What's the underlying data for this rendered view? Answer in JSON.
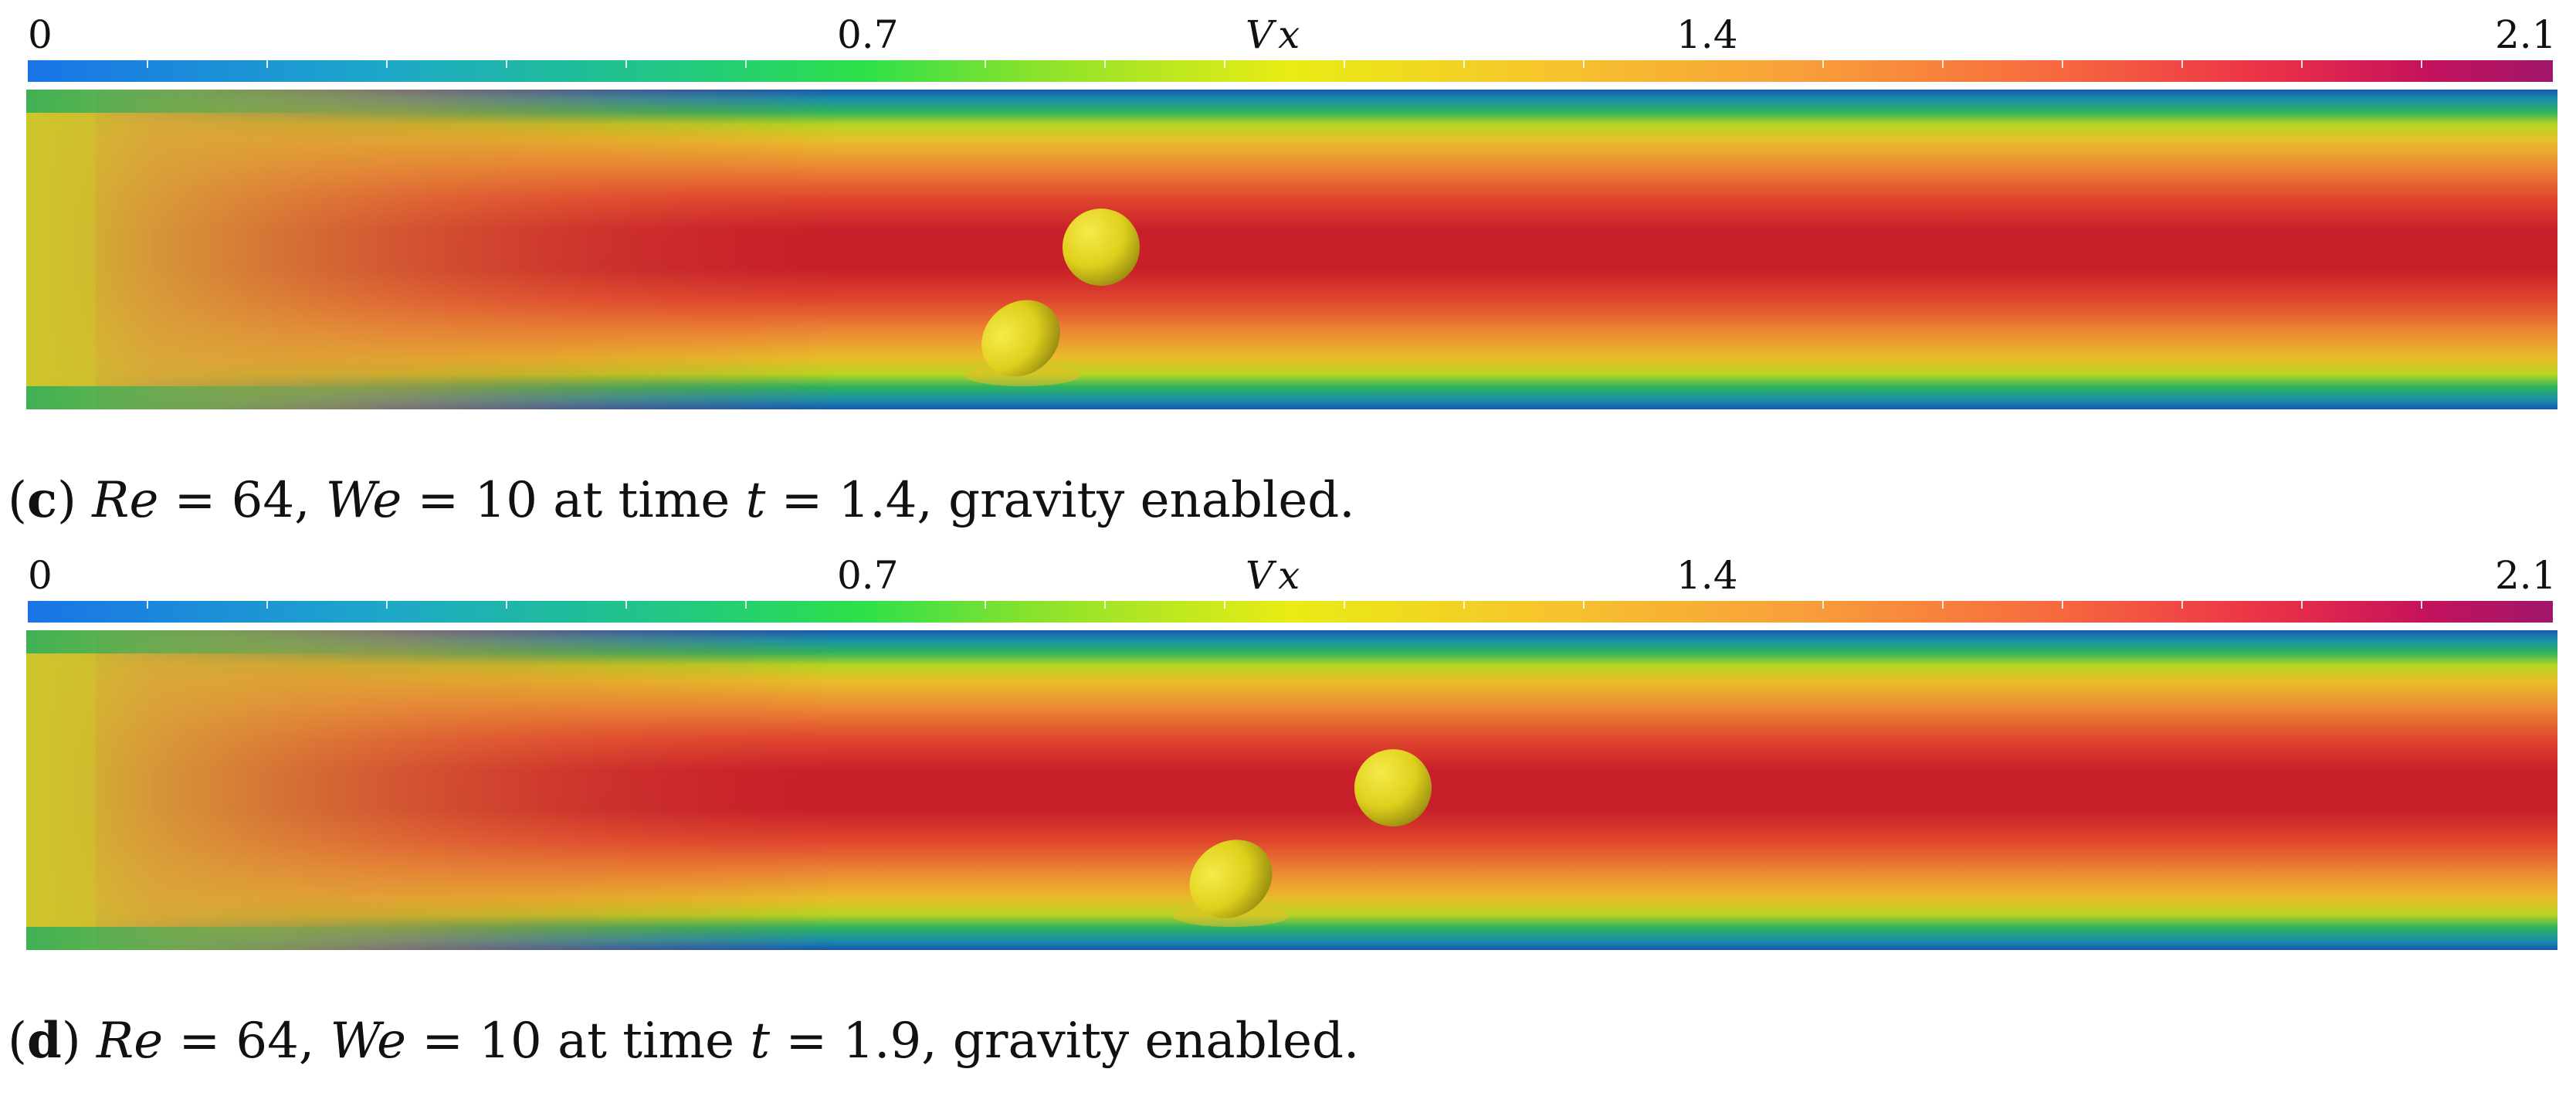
{
  "panels": [
    {
      "id": "c",
      "colorbar": {
        "title": "Vx",
        "tick_labels": [
          "0",
          "0.7",
          "1.4",
          "2.1"
        ],
        "min": 0,
        "max": 2.1
      },
      "caption": {
        "open_paren": "(",
        "letter": "c",
        "close_paren": ")",
        "re_symbol": "Re",
        "re_eq": " = 64, ",
        "we_symbol": "We",
        "we_eq": " = 10 at time ",
        "t_symbol": "t",
        "t_eq": " = 1.4, gravity enabled."
      }
    },
    {
      "id": "d",
      "colorbar": {
        "title": "Vx",
        "tick_labels": [
          "0",
          "0.7",
          "1.4",
          "2.1"
        ],
        "min": 0,
        "max": 2.1
      },
      "caption": {
        "open_paren": "(",
        "letter": "d",
        "close_paren": ")",
        "re_symbol": "Re",
        "re_eq": " = 64, ",
        "we_symbol": "We",
        "we_eq": " = 10 at time ",
        "t_symbol": "t",
        "t_eq": " = 1.9, gravity enabled."
      }
    }
  ],
  "colors": {
    "wall": "#1763b8",
    "core": "#c71f2a",
    "inlet": "#c9c02a",
    "droplet": "#e6d51e"
  }
}
